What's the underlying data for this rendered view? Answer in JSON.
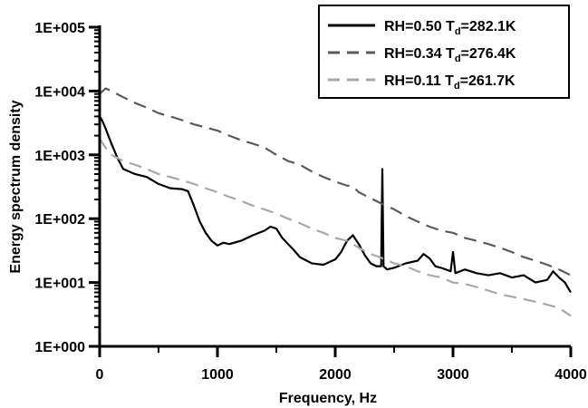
{
  "chart_data": {
    "type": "line",
    "xlabel": "Frequency, Hz",
    "ylabel": "Energy spectrum density",
    "xlim": [
      0,
      4000
    ],
    "ylim": [
      1,
      100000
    ],
    "y_scale": "log",
    "x_ticks": [
      0,
      1000,
      2000,
      3000,
      4000
    ],
    "x_tick_labels": [
      "0",
      "1000",
      "2000",
      "3000",
      "4000"
    ],
    "y_ticks": [
      1,
      10,
      100,
      1000,
      10000,
      100000
    ],
    "y_tick_labels": [
      "1E+000",
      "1E+001",
      "1E+002",
      "1E+003",
      "1E+004",
      "1E+005"
    ],
    "legend_position": "top-right",
    "series": [
      {
        "name": "RH=0.50 T_d=282.1K",
        "label_main": "RH=0.50 T",
        "label_sub": "d",
        "label_end": "=282.1K",
        "color": "#000000",
        "dash": "solid",
        "x": [
          0,
          20,
          50,
          100,
          150,
          200,
          300,
          400,
          500,
          600,
          700,
          750,
          800,
          850,
          900,
          950,
          1000,
          1050,
          1100,
          1200,
          1300,
          1400,
          1450,
          1500,
          1550,
          1600,
          1650,
          1700,
          1800,
          1900,
          2000,
          2050,
          2100,
          2150,
          2200,
          2250,
          2300,
          2350,
          2390,
          2400,
          2410,
          2440,
          2500,
          2600,
          2700,
          2750,
          2800,
          2850,
          2900,
          2980,
          3000,
          3020,
          3100,
          3200,
          3300,
          3400,
          3500,
          3600,
          3700,
          3800,
          3850,
          3900,
          3950,
          4000
        ],
        "y": [
          4000,
          3500,
          2600,
          1500,
          900,
          600,
          500,
          450,
          350,
          300,
          290,
          270,
          160,
          90,
          60,
          45,
          38,
          42,
          40,
          45,
          55,
          65,
          75,
          70,
          50,
          40,
          32,
          25,
          20,
          19,
          23,
          30,
          45,
          55,
          40,
          27,
          20,
          18,
          18,
          600,
          18,
          16,
          17,
          20,
          22,
          28,
          24,
          18,
          17,
          15,
          30,
          14,
          16,
          14,
          13,
          14,
          12,
          13,
          10,
          11,
          15,
          12,
          10,
          7
        ]
      },
      {
        "name": "RH=0.34 T_d=276.4K",
        "label_main": "RH=0.34 T",
        "label_sub": "d",
        "label_end": "=276.4K",
        "color": "#5a5a5a",
        "dash": "dashed",
        "x": [
          0,
          50,
          100,
          200,
          300,
          400,
          500,
          600,
          700,
          800,
          900,
          1000,
          1100,
          1200,
          1300,
          1400,
          1500,
          1600,
          1700,
          1800,
          1900,
          2000,
          2100,
          2150,
          2200,
          2300,
          2400,
          2500,
          2600,
          2700,
          2800,
          2900,
          3000,
          3100,
          3200,
          3300,
          3400,
          3500,
          3600,
          3700,
          3800,
          3900,
          4000
        ],
        "y": [
          9000,
          11000,
          10000,
          8000,
          6500,
          5500,
          4500,
          4000,
          3500,
          3000,
          2700,
          2400,
          2000,
          1700,
          1500,
          1300,
          1000,
          800,
          700,
          550,
          450,
          380,
          330,
          320,
          260,
          210,
          170,
          140,
          110,
          90,
          75,
          65,
          60,
          50,
          45,
          40,
          35,
          30,
          25,
          22,
          19,
          16,
          13
        ]
      },
      {
        "name": "RH=0.11 T_d=261.7K",
        "label_main": "RH=0.11 T",
        "label_sub": "d",
        "label_end": "=261.7K",
        "color": "#a8a8a8",
        "dash": "dashed",
        "x": [
          0,
          50,
          100,
          200,
          300,
          400,
          500,
          600,
          700,
          800,
          900,
          1000,
          1100,
          1200,
          1300,
          1400,
          1500,
          1600,
          1700,
          1800,
          1900,
          2000,
          2100,
          2150,
          2200,
          2300,
          2400,
          2500,
          2600,
          2700,
          2800,
          2900,
          3000,
          3100,
          3200,
          3300,
          3400,
          3500,
          3600,
          3700,
          3800,
          3900,
          4000
        ],
        "y": [
          1800,
          1300,
          1000,
          800,
          700,
          600,
          500,
          450,
          400,
          350,
          300,
          260,
          220,
          190,
          160,
          140,
          120,
          100,
          85,
          70,
          60,
          50,
          45,
          40,
          35,
          28,
          24,
          20,
          18,
          15,
          13,
          12,
          10,
          9.5,
          8.5,
          7.5,
          6.5,
          6,
          5.5,
          5,
          4.5,
          4,
          3
        ]
      }
    ]
  }
}
